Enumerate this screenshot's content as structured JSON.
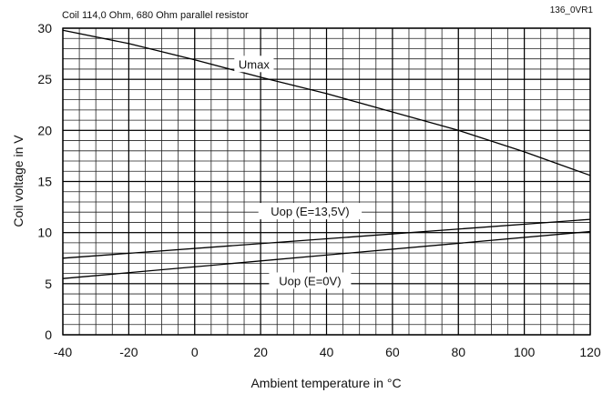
{
  "chart_data": {
    "type": "line",
    "title": "Coil 114,0 Ohm, 680 Ohm parallel resistor",
    "code": "136_0VR1",
    "xlabel": "Ambient temperature in °C",
    "ylabel": "Coil voltage in V",
    "xlim": [
      -40,
      120
    ],
    "ylim": [
      0,
      30
    ],
    "x_ticks": [
      -40,
      -20,
      0,
      20,
      40,
      60,
      80,
      100,
      120
    ],
    "y_ticks": [
      0,
      5,
      10,
      15,
      20,
      25,
      30
    ],
    "x_minor_step": 5,
    "y_minor_step": 1,
    "grid": true,
    "series": [
      {
        "name": "Umax",
        "x": [
          -40,
          -20,
          0,
          20,
          40,
          60,
          80,
          100,
          120
        ],
        "y": [
          29.8,
          28.5,
          26.9,
          25.2,
          23.6,
          21.8,
          20.0,
          17.9,
          15.6
        ]
      },
      {
        "name": "Uop (E=13,5V)",
        "x": [
          -40,
          120
        ],
        "y": [
          7.5,
          11.3
        ]
      },
      {
        "name": "Uop (E=0V)",
        "x": [
          -40,
          120
        ],
        "y": [
          5.5,
          10.1
        ]
      }
    ]
  }
}
